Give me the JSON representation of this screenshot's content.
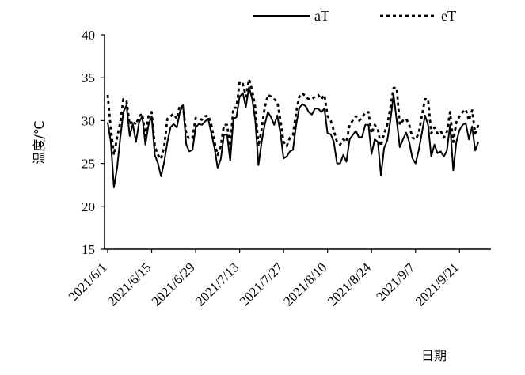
{
  "chart_data": {
    "type": "line",
    "ylabel": "温度/℃",
    "xlabel": "日期",
    "ylim": [
      15,
      40
    ],
    "yticks": [
      "15",
      "20",
      "25",
      "30",
      "35",
      "40"
    ],
    "x_start": "2021-06-01",
    "x_end": "2021-09-30",
    "x_tick_labels": [
      "2021/6/1",
      "2021/6/15",
      "2021/6/29",
      "2021/7/13",
      "2021/7/27",
      "2021/8/10",
      "2021/8/24",
      "2021/9/7",
      "2021/9/21"
    ],
    "legend_position": "top-right",
    "grid": false,
    "series": [
      {
        "name": "aT",
        "style": "solid",
        "color": "#000000",
        "values": [
          29.8,
          27.5,
          22.2,
          24.5,
          28.0,
          31.0,
          31.8,
          28.2,
          29.6,
          27.5,
          29.8,
          30.5,
          27.2,
          29.5,
          30.5,
          26.0,
          25.0,
          23.5,
          25.2,
          27.5,
          29.2,
          29.6,
          29.2,
          31.0,
          31.8,
          27.2,
          26.4,
          26.6,
          29.2,
          29.6,
          29.5,
          29.9,
          30.2,
          28.5,
          26.8,
          24.5,
          25.5,
          28.3,
          28.4,
          25.3,
          30.2,
          30.4,
          32.8,
          33.2,
          31.6,
          33.9,
          32.5,
          30.0,
          24.8,
          27.5,
          29.5,
          31.0,
          30.4,
          29.5,
          30.6,
          28.5,
          25.6,
          25.8,
          26.4,
          26.6,
          29.5,
          31.5,
          31.9,
          31.7,
          31.0,
          30.7,
          31.4,
          31.4,
          31.0,
          31.4,
          28.5,
          28.4,
          27.5,
          25.0,
          25.0,
          26.0,
          25.2,
          27.8,
          28.3,
          28.8,
          28.0,
          28.1,
          29.5,
          29.5,
          26.1,
          27.8,
          27.5,
          23.6,
          26.8,
          27.7,
          30.0,
          33.0,
          30.0,
          26.9,
          27.8,
          28.6,
          27.5,
          25.6,
          25.0,
          26.5,
          28.5,
          30.6,
          29.5,
          25.8,
          27.2,
          26.2,
          26.4,
          25.8,
          26.5,
          29.5,
          24.2,
          27.5,
          28.9,
          29.5,
          29.7,
          27.8,
          29.3,
          26.5,
          27.5
        ]
      },
      {
        "name": "eT",
        "style": "dashed",
        "color": "#000000",
        "values": [
          33.0,
          29.0,
          26.0,
          28.0,
          29.8,
          32.5,
          32.3,
          29.5,
          30.0,
          29.5,
          30.5,
          30.8,
          28.2,
          30.5,
          31.0,
          27.0,
          26.0,
          25.5,
          27.0,
          30.2,
          30.5,
          30.8,
          30.2,
          31.8,
          31.5,
          28.5,
          27.8,
          28.0,
          30.3,
          30.2,
          30.1,
          30.5,
          30.6,
          29.5,
          27.5,
          26.0,
          27.0,
          29.5,
          29.5,
          27.0,
          31.5,
          31.5,
          34.5,
          34.3,
          32.8,
          34.8,
          33.5,
          31.5,
          27.0,
          29.0,
          31.5,
          33.0,
          32.8,
          32.5,
          32.2,
          30.0,
          27.5,
          27.0,
          28.0,
          28.3,
          31.0,
          32.8,
          33.2,
          32.8,
          32.5,
          32.5,
          32.8,
          33.0,
          32.5,
          33.0,
          30.5,
          30.0,
          28.8,
          27.5,
          27.2,
          27.8,
          27.5,
          29.5,
          30.0,
          30.5,
          30.0,
          30.3,
          31.0,
          31.0,
          28.5,
          29.5,
          29.0,
          27.0,
          28.5,
          29.5,
          31.5,
          33.8,
          33.8,
          29.5,
          30.0,
          30.2,
          29.5,
          28.0,
          27.8,
          28.5,
          30.5,
          32.5,
          32.5,
          28.5,
          29.2,
          28.5,
          28.8,
          28.0,
          28.7,
          31.0,
          27.5,
          29.8,
          30.5,
          31.0,
          31.3,
          30.0,
          31.2,
          28.5,
          29.5
        ]
      }
    ]
  }
}
